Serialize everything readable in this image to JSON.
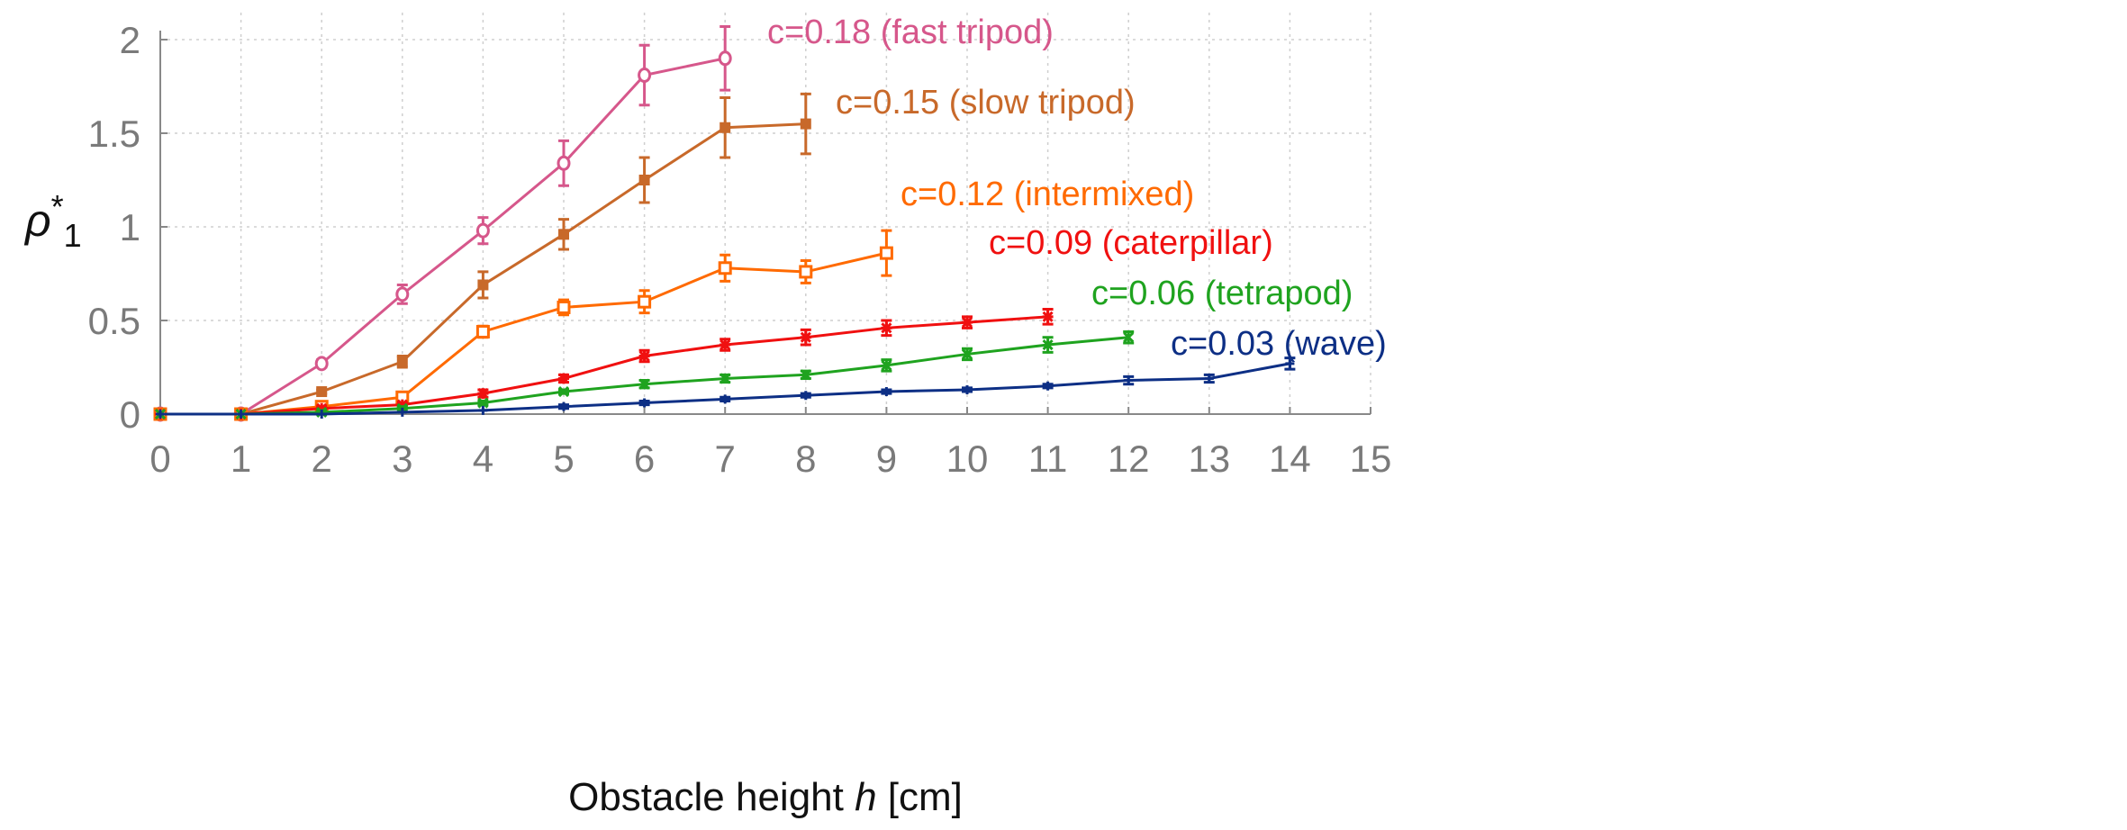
{
  "chart_data": {
    "type": "line",
    "title": "",
    "xlabel_prefix": "Obstacle height ",
    "xlabel_var": "h",
    "xlabel_unit": " [cm]",
    "ylabel_main": "ρ",
    "ylabel_sup": "*",
    "ylabel_sub": "1",
    "xlim": [
      0,
      15
    ],
    "ylim": [
      0,
      2
    ],
    "xticks": [
      "0",
      "1",
      "2",
      "3",
      "4",
      "5",
      "6",
      "7",
      "8",
      "9",
      "10",
      "11",
      "12",
      "13",
      "14",
      "15"
    ],
    "yticks": [
      "0",
      "0.5",
      "1",
      "1.5",
      "2"
    ],
    "grid": true,
    "series": [
      {
        "name": "c=0.18 (fast tripod)",
        "color": "#d6578b",
        "marker": "open-circle",
        "x": [
          0,
          1,
          2,
          3,
          4,
          5,
          6,
          7
        ],
        "y": [
          0,
          0,
          0.27,
          0.64,
          0.98,
          1.34,
          1.81,
          1.9
        ],
        "err": [
          0,
          0,
          0.02,
          0.05,
          0.07,
          0.12,
          0.16,
          0.17
        ]
      },
      {
        "name": "c=0.15 (slow tripod)",
        "color": "#c8692a",
        "marker": "filled-square",
        "x": [
          0,
          1,
          2,
          3,
          4,
          5,
          6,
          7,
          8
        ],
        "y": [
          0,
          0,
          0.12,
          0.28,
          0.69,
          0.96,
          1.25,
          1.53,
          1.55
        ],
        "err": [
          0,
          0,
          0.01,
          0.03,
          0.07,
          0.08,
          0.12,
          0.16,
          0.16
        ]
      },
      {
        "name": "c=0.12 (intermixed)",
        "color": "#ff6a00",
        "marker": "open-square",
        "x": [
          0,
          1,
          2,
          3,
          4,
          5,
          6,
          7,
          8,
          9
        ],
        "y": [
          0,
          0,
          0.04,
          0.09,
          0.44,
          0.57,
          0.6,
          0.78,
          0.76,
          0.86
        ],
        "err": [
          0,
          0,
          0.01,
          0.02,
          0.03,
          0.04,
          0.06,
          0.07,
          0.06,
          0.12
        ]
      },
      {
        "name": "c=0.09 (caterpillar)",
        "color": "#f01010",
        "marker": "star",
        "x": [
          0,
          1,
          2,
          3,
          4,
          5,
          6,
          7,
          8,
          9,
          10,
          11
        ],
        "y": [
          0,
          0,
          0.03,
          0.05,
          0.11,
          0.19,
          0.31,
          0.37,
          0.41,
          0.46,
          0.49,
          0.52
        ],
        "err": [
          0,
          0,
          0.01,
          0.01,
          0.02,
          0.02,
          0.03,
          0.03,
          0.04,
          0.04,
          0.03,
          0.04
        ]
      },
      {
        "name": "c=0.06 (tetrapod)",
        "color": "#1fa31f",
        "marker": "x",
        "x": [
          0,
          1,
          2,
          3,
          4,
          5,
          6,
          7,
          8,
          9,
          10,
          11,
          12
        ],
        "y": [
          0,
          0,
          0.01,
          0.03,
          0.06,
          0.12,
          0.16,
          0.19,
          0.21,
          0.26,
          0.32,
          0.37,
          0.41
        ],
        "err": [
          0,
          0,
          0.01,
          0.01,
          0.01,
          0.01,
          0.02,
          0.02,
          0.02,
          0.03,
          0.03,
          0.04,
          0.03
        ]
      },
      {
        "name": "c=0.03 (wave)",
        "color": "#0d2f85",
        "marker": "plus",
        "x": [
          0,
          1,
          2,
          3,
          4,
          5,
          6,
          7,
          8,
          9,
          10,
          11,
          12,
          13,
          14
        ],
        "y": [
          0,
          0,
          0,
          0.01,
          0.02,
          0.04,
          0.06,
          0.08,
          0.1,
          0.12,
          0.13,
          0.15,
          0.18,
          0.19,
          0.27
        ],
        "err": [
          0,
          0,
          0,
          0,
          0,
          0.01,
          0.01,
          0.01,
          0.01,
          0.01,
          0.01,
          0.01,
          0.02,
          0.02,
          0.03
        ]
      }
    ]
  }
}
